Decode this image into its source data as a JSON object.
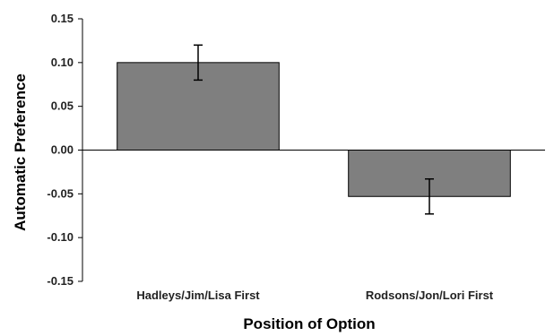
{
  "chart_data": {
    "type": "bar",
    "categories": [
      "Hadleys/Jim/Lisa First",
      "Rodsons/Jon/Lori First"
    ],
    "values": [
      0.1,
      -0.053
    ],
    "errors": [
      0.02,
      0.02
    ],
    "xlabel": "Position of Option",
    "ylabel": "Automatic Preference",
    "ylim": [
      -0.15,
      0.15
    ],
    "yticks": [
      0.15,
      0.1,
      0.05,
      0.0,
      -0.05,
      -0.1,
      -0.15
    ],
    "ytick_labels": [
      "0.15",
      "0.10",
      "0.05",
      "0.00",
      "-0.05",
      "-0.10",
      "-0.15"
    ],
    "grid": false,
    "legend": "none",
    "bar_color": "#7f7f7f",
    "bar_edge_color": "#000000"
  }
}
